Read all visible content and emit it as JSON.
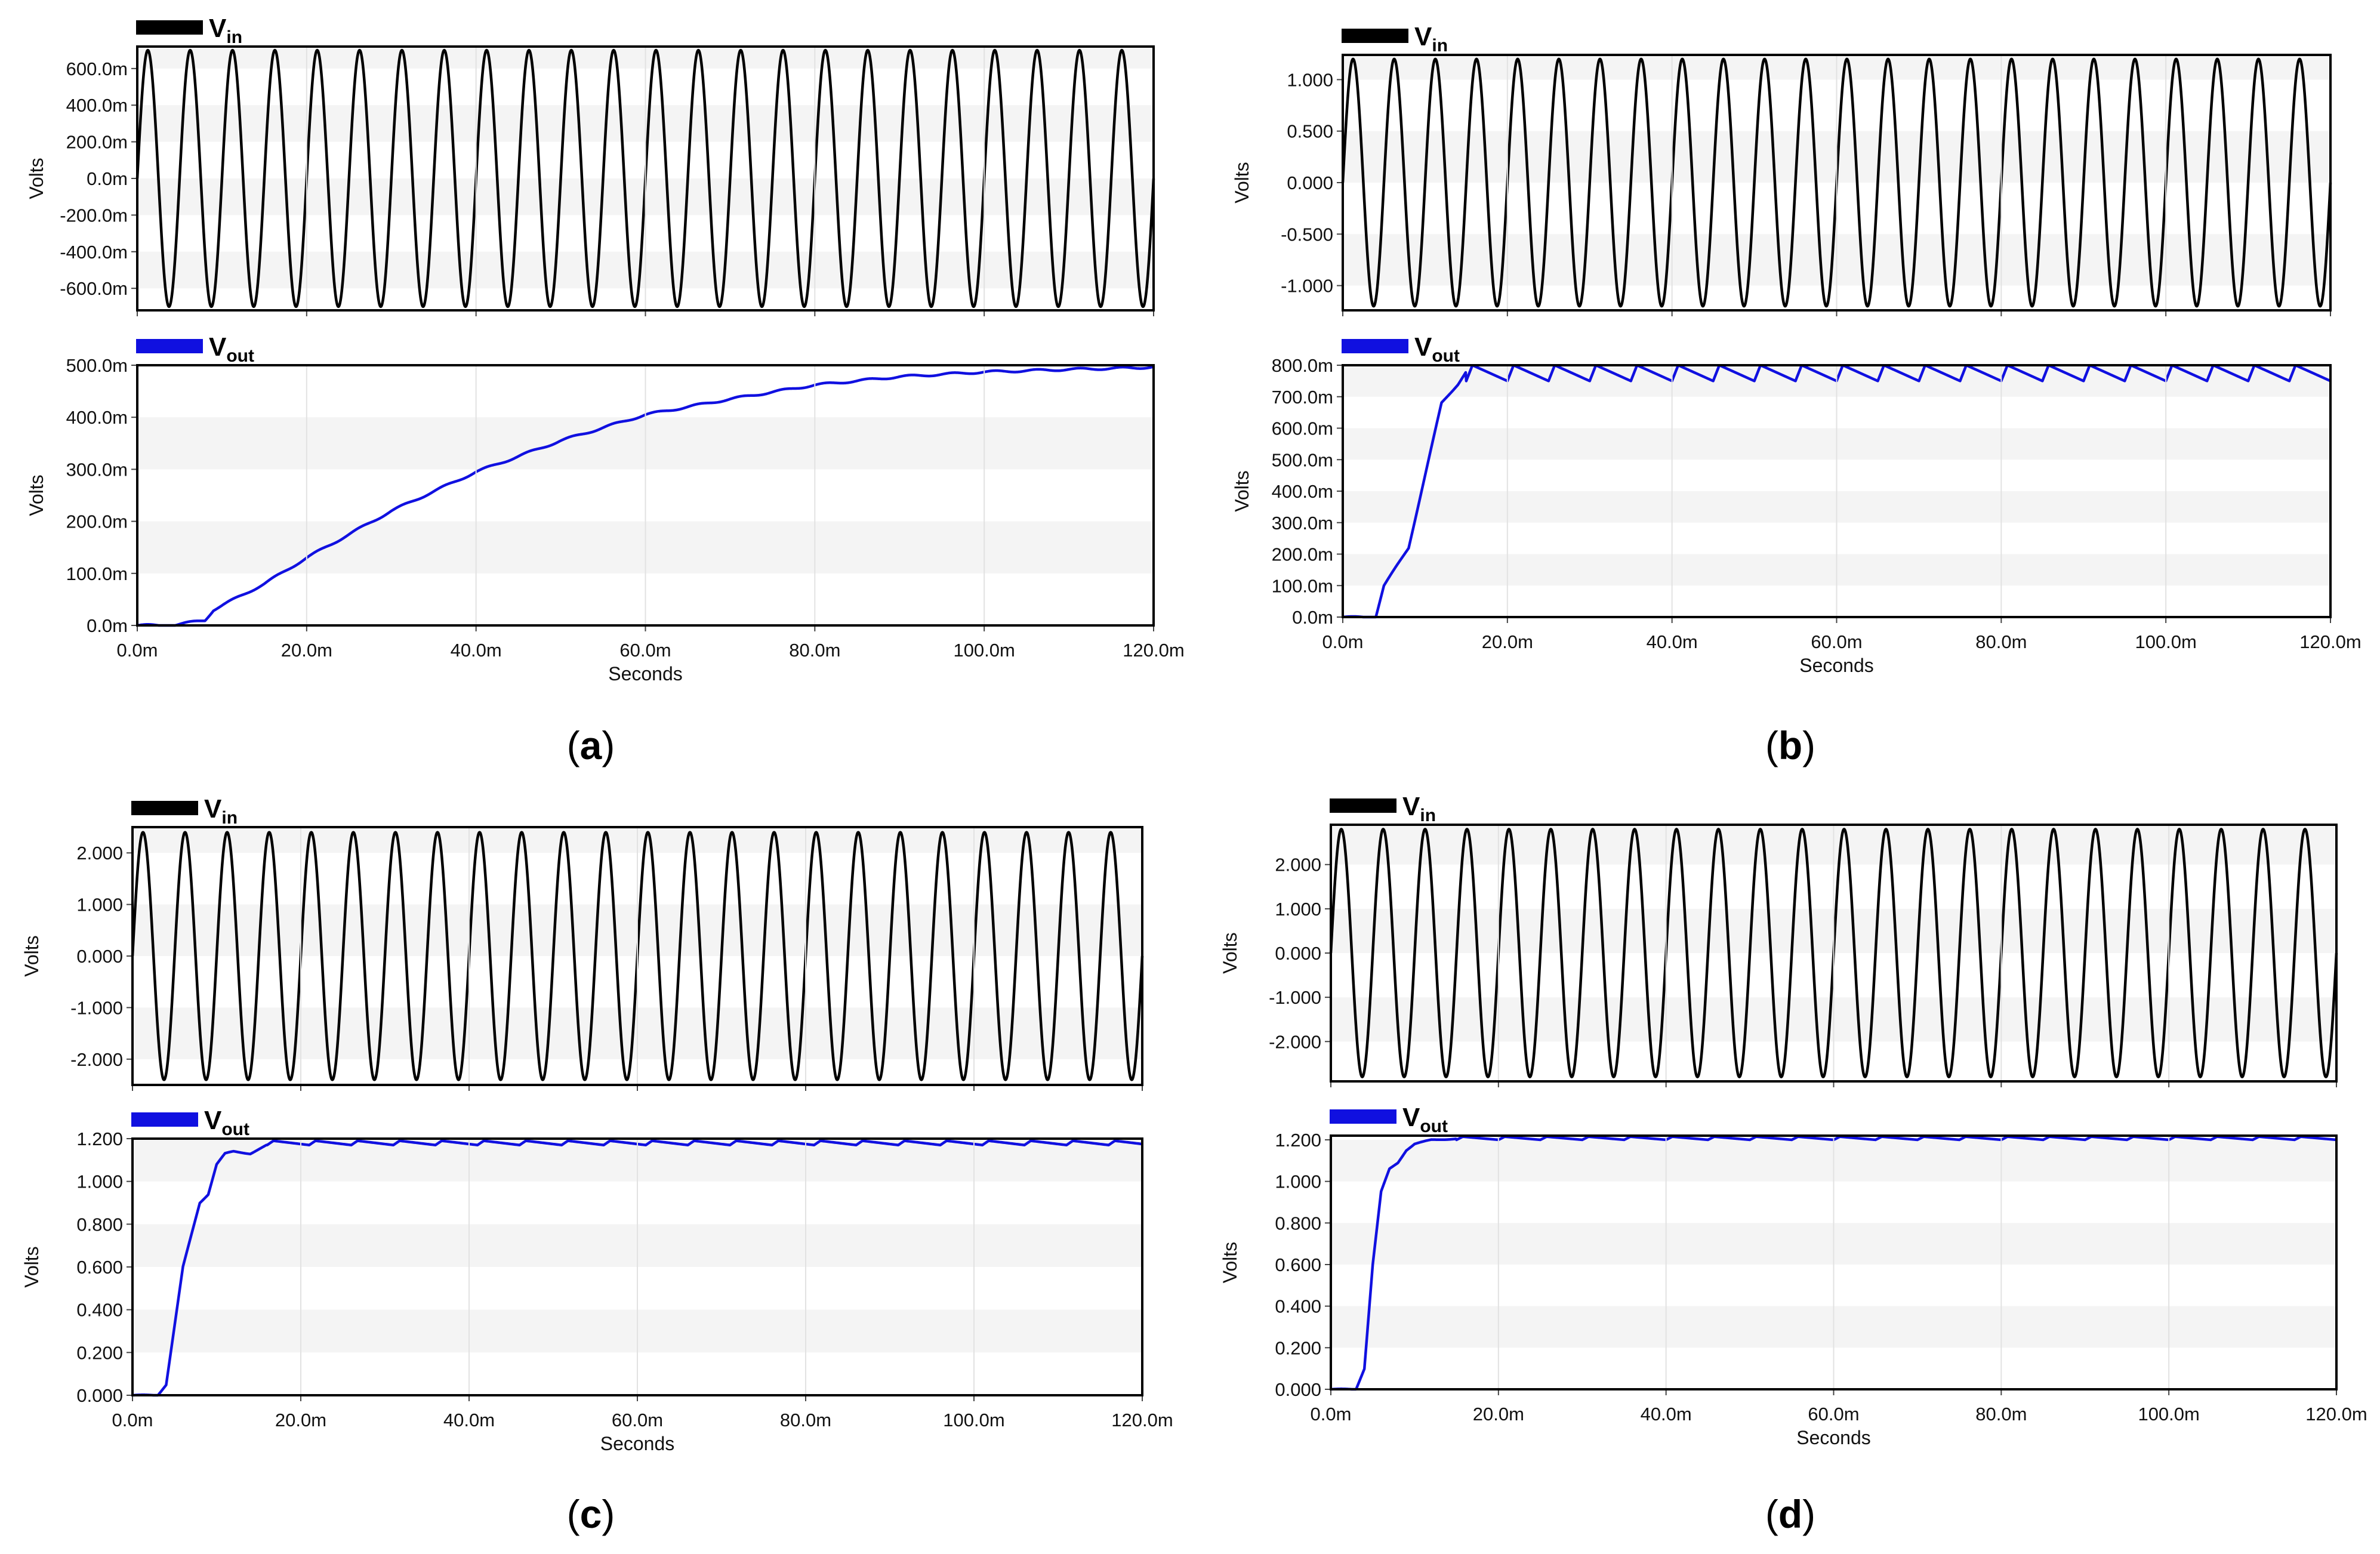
{
  "figure": {
    "colors": {
      "vin": "#000000",
      "vout": "#1010e0",
      "band": "#f4f4f4",
      "grid": "#e2e2e2",
      "frame": "#000000"
    },
    "legend": {
      "vin": {
        "main": "V",
        "sub": "in"
      },
      "vout": {
        "main": "V",
        "sub": "out"
      }
    },
    "y_axis_label": "Volts",
    "x_axis_label": "Seconds",
    "x_ticks": [
      "0.0m",
      "20.0m",
      "40.0m",
      "60.0m",
      "80.0m",
      "100.0m",
      "120.0m"
    ],
    "x_range_ms": [
      0,
      120
    ]
  },
  "chart_data": [
    {
      "panel": "a",
      "caption_letter": "a",
      "vin": {
        "type": "line",
        "series_name": "Vin",
        "ylabel": "Volts",
        "amplitude": 0.7,
        "frequency_hz": 200,
        "cycles": 24,
        "ylim": [
          -0.72,
          0.72
        ],
        "yticks": [
          0.6,
          0.4,
          0.2,
          0.0,
          -0.2,
          -0.4,
          -0.6
        ],
        "ytick_labels": [
          "600.0m",
          "400.0m",
          "200.0m",
          "0.0m",
          "-200.0m",
          "-400.0m",
          "-600.0m"
        ]
      },
      "vout": {
        "type": "line",
        "series_name": "Vout",
        "xlabel": "Seconds",
        "ylabel": "Volts",
        "ylim": [
          0,
          0.5
        ],
        "yticks": [
          0.5,
          0.4,
          0.3,
          0.2,
          0.1,
          0.0
        ],
        "ytick_labels": [
          "500.0m",
          "400.0m",
          "300.0m",
          "200.0m",
          "100.0m",
          "0.0m"
        ],
        "x_ms": [
          0,
          4,
          8,
          9,
          15,
          20,
          30,
          40,
          50,
          60,
          70,
          80,
          90,
          100,
          110,
          118,
          120
        ],
        "y": [
          0,
          0,
          0.01,
          0.03,
          0.08,
          0.13,
          0.22,
          0.295,
          0.355,
          0.405,
          0.435,
          0.462,
          0.478,
          0.487,
          0.492,
          0.495,
          0.497
        ]
      }
    },
    {
      "panel": "b",
      "caption_letter": "b",
      "vin": {
        "type": "line",
        "series_name": "Vin",
        "ylabel": "Volts",
        "amplitude": 1.2,
        "frequency_hz": 200,
        "cycles": 24,
        "ylim": [
          -1.24,
          1.24
        ],
        "yticks": [
          1.0,
          0.5,
          0.0,
          -0.5,
          -1.0
        ],
        "ytick_labels": [
          "1.000",
          "0.500",
          "0.000",
          "-0.500",
          "-1.000"
        ]
      },
      "vout": {
        "type": "line",
        "series_name": "Vout",
        "xlabel": "Seconds",
        "ylabel": "Volts",
        "ylim": [
          0,
          0.8
        ],
        "yticks": [
          0.8,
          0.7,
          0.6,
          0.5,
          0.4,
          0.3,
          0.2,
          0.1,
          0.0
        ],
        "ytick_labels": [
          "800.0m",
          "700.0m",
          "600.0m",
          "500.0m",
          "400.0m",
          "300.0m",
          "200.0m",
          "100.0m",
          "0.0m"
        ],
        "x_ms": [
          0,
          4,
          5,
          8,
          10,
          12,
          14,
          15,
          20,
          120
        ],
        "y": [
          0,
          0,
          0.1,
          0.22,
          0.45,
          0.68,
          0.74,
          0.78,
          0.79,
          0.79
        ],
        "steady_ripple": {
          "low": 0.75,
          "high": 0.8,
          "period_ms": 5,
          "from_ms": 15
        }
      }
    },
    {
      "panel": "c",
      "caption_letter": "c",
      "vin": {
        "type": "line",
        "series_name": "Vin",
        "ylabel": "Volts",
        "amplitude": 2.4,
        "frequency_hz": 200,
        "cycles": 24,
        "ylim": [
          -2.5,
          2.5
        ],
        "yticks": [
          2.0,
          1.0,
          0.0,
          -1.0,
          -2.0
        ],
        "ytick_labels": [
          "2.000",
          "1.000",
          "0.000",
          "-1.000",
          "-2.000"
        ]
      },
      "vout": {
        "type": "line",
        "series_name": "Vout",
        "xlabel": "Seconds",
        "ylabel": "Volts",
        "ylim": [
          0,
          1.2
        ],
        "yticks": [
          1.2,
          1.0,
          0.8,
          0.6,
          0.4,
          0.2,
          0.0
        ],
        "ytick_labels": [
          "1.200",
          "1.000",
          "0.800",
          "0.600",
          "0.400",
          "0.200",
          "0.000"
        ],
        "x_ms": [
          0,
          3,
          4,
          6,
          8,
          9,
          10,
          11,
          12,
          14,
          16,
          20,
          120
        ],
        "y": [
          0,
          0,
          0.05,
          0.6,
          0.9,
          0.94,
          1.08,
          1.13,
          1.14,
          1.13,
          1.17,
          1.18,
          1.18
        ],
        "steady_ripple": {
          "low": 1.17,
          "high": 1.19,
          "period_ms": 5,
          "from_ms": 16
        }
      }
    },
    {
      "panel": "d",
      "caption_letter": "d",
      "vin": {
        "type": "line",
        "series_name": "Vin",
        "ylabel": "Volts",
        "amplitude": 2.8,
        "frequency_hz": 200,
        "cycles": 24,
        "ylim": [
          -2.9,
          2.9
        ],
        "yticks": [
          2.0,
          1.0,
          0.0,
          -1.0,
          -2.0
        ],
        "ytick_labels": [
          "2.000",
          "1.000",
          "0.000",
          "-1.000",
          "-2.000"
        ]
      },
      "vout": {
        "type": "line",
        "series_name": "Vout",
        "xlabel": "Seconds",
        "ylabel": "Volts",
        "ylim": [
          0,
          1.22
        ],
        "yticks": [
          1.2,
          1.0,
          0.8,
          0.6,
          0.4,
          0.2,
          0.0
        ],
        "ytick_labels": [
          "1.200",
          "1.000",
          "0.800",
          "0.600",
          "0.400",
          "0.200",
          "0.000"
        ],
        "x_ms": [
          0,
          3,
          4,
          5,
          6,
          7,
          8,
          9,
          10,
          12,
          15,
          120
        ],
        "y": [
          0,
          0,
          0.1,
          0.6,
          0.95,
          1.06,
          1.09,
          1.15,
          1.18,
          1.2,
          1.205,
          1.21
        ],
        "steady_ripple": {
          "low": 1.2,
          "high": 1.215,
          "period_ms": 5,
          "from_ms": 15
        }
      }
    }
  ]
}
